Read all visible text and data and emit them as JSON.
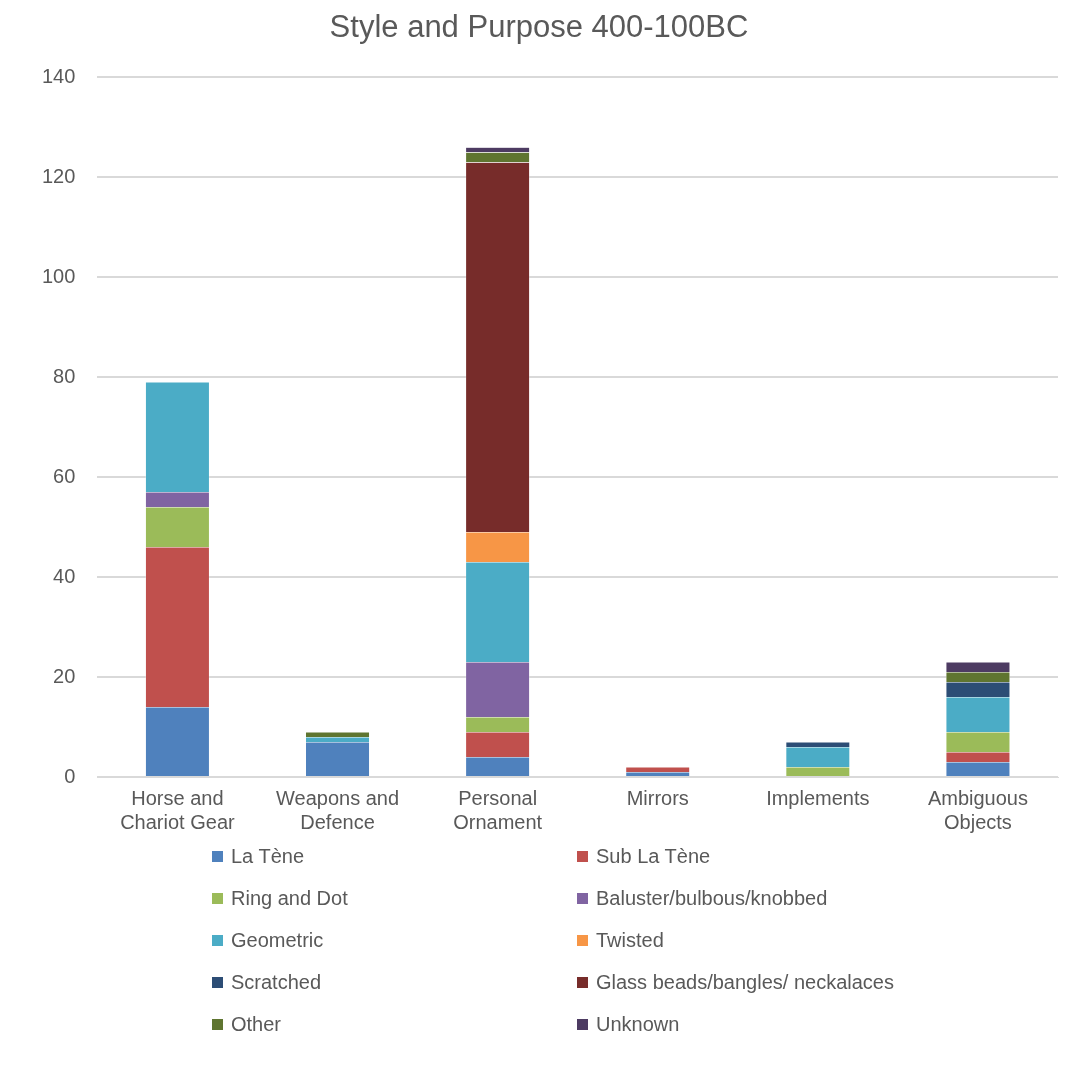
{
  "chart_data": {
    "type": "bar",
    "title": "Style and Purpose 400-100BC",
    "stacked": true,
    "categories": [
      "Horse and Chariot Gear",
      "Weapons and Defence",
      "Personal Ornament",
      "Mirrors",
      "Implements",
      "Ambiguous Objects"
    ],
    "series": [
      {
        "name": "La Tène",
        "color": "#4f81bd",
        "values": [
          14,
          7,
          4,
          1,
          0,
          3
        ]
      },
      {
        "name": "Sub La Tène",
        "color": "#c0504d",
        "values": [
          32,
          0,
          5,
          1,
          0,
          2
        ]
      },
      {
        "name": "Ring and Dot",
        "color": "#9bbb59",
        "values": [
          8,
          0,
          3,
          0,
          2,
          4
        ]
      },
      {
        "name": "Baluster/bulbous/knobbed",
        "color": "#8064a2",
        "values": [
          3,
          0,
          11,
          0,
          0,
          0
        ]
      },
      {
        "name": "Geometric",
        "color": "#4bacc6",
        "values": [
          22,
          1,
          20,
          0,
          4,
          7
        ]
      },
      {
        "name": "Twisted",
        "color": "#f79646",
        "values": [
          0,
          0,
          6,
          0,
          0,
          0
        ]
      },
      {
        "name": "Scratched",
        "color": "#2c4d75",
        "values": [
          0,
          0,
          0,
          0,
          1,
          3
        ]
      },
      {
        "name": "Glass beads/bangles/ neckalaces",
        "color": "#772c2a",
        "values": [
          0,
          0,
          74,
          0,
          0,
          0
        ]
      },
      {
        "name": "Other",
        "color": "#5f7530",
        "values": [
          0,
          1,
          2,
          0,
          0,
          2
        ]
      },
      {
        "name": "Unknown",
        "color": "#4d3b62",
        "values": [
          0,
          0,
          1,
          0,
          0,
          2
        ]
      }
    ],
    "ylim": [
      0,
      140
    ],
    "yticks": [
      0,
      20,
      40,
      60,
      80,
      100,
      120,
      140
    ],
    "grid": "y",
    "legend": "bottom"
  }
}
